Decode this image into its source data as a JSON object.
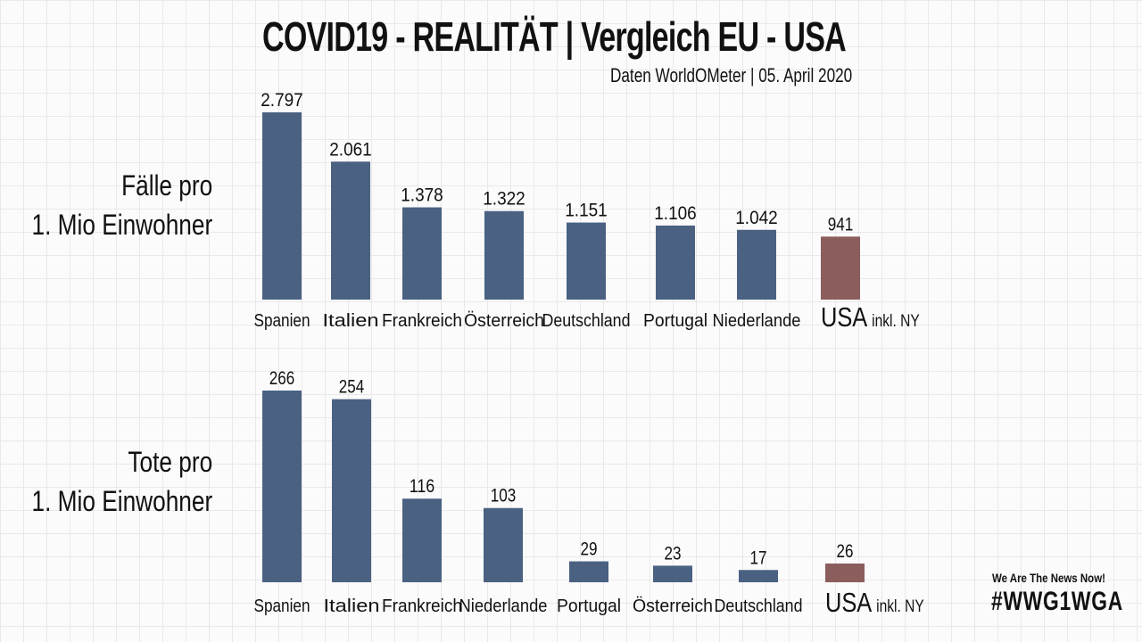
{
  "header": {
    "title": "COVID19 - REALITÄT | Vergleich EU - USA",
    "subtitle": "Daten WorldOMeter | 05. April 2020"
  },
  "colors": {
    "eu_bar": "#4a6182",
    "usa_bar": "#8b5e5d",
    "text": "#111111"
  },
  "footer": {
    "brand": "We Are The News Now!",
    "hashtag": "#WWG1WGA"
  },
  "chart_data": [
    {
      "type": "bar",
      "side_label": [
        "Fälle pro",
        "1. Mio Einwohner"
      ],
      "categories": [
        "Spanien",
        "Italien",
        "Frankreich",
        "Österreich",
        "Deutschland",
        "Portugal",
        "Niederlande",
        "USA"
      ],
      "values": [
        2797,
        2061,
        1378,
        1322,
        1151,
        1106,
        1042,
        941
      ],
      "value_labels": [
        "2.797",
        "2.061",
        "1.378",
        "1.322",
        "1.151",
        "1.106",
        "1.042",
        "941"
      ],
      "highlight": {
        "category": "USA",
        "suffix": "inkl. NY"
      }
    },
    {
      "type": "bar",
      "side_label": [
        "Tote pro",
        "1. Mio Einwohner"
      ],
      "categories": [
        "Spanien",
        "Italien",
        "Frankreich",
        "Niederlande",
        "Portugal",
        "Österreich",
        "Deutschland",
        "USA"
      ],
      "values": [
        266,
        254,
        116,
        103,
        29,
        23,
        17,
        26
      ],
      "value_labels": [
        "266",
        "254",
        "116",
        "103",
        "29",
        "23",
        "17",
        "26"
      ],
      "highlight": {
        "category": "USA",
        "suffix": "inkl. NY"
      }
    }
  ]
}
